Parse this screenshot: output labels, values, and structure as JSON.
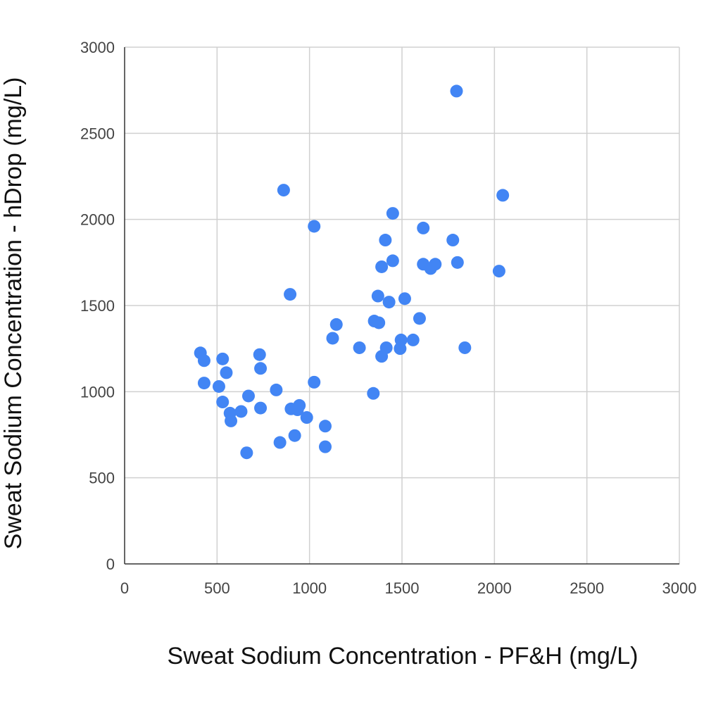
{
  "chart_data": {
    "type": "scatter",
    "title": "",
    "xlabel": "Sweat Sodium Concentration - PF&H (mg/L)",
    "ylabel": "Sweat Sodium Concentration - hDrop (mg/L)",
    "xlim": [
      0,
      3000
    ],
    "ylim": [
      0,
      3000
    ],
    "xticks": [
      "0",
      "500",
      "1000",
      "1500",
      "2000",
      "2500",
      "3000"
    ],
    "yticks": [
      "0",
      "500",
      "1000",
      "1500",
      "2000",
      "2500",
      "3000"
    ],
    "grid": true,
    "point_color": "#4285f4",
    "series": [
      {
        "name": "Sweat Sodium",
        "points": [
          [
            410,
            1225
          ],
          [
            430,
            1180
          ],
          [
            430,
            1050
          ],
          [
            510,
            1030
          ],
          [
            530,
            1190
          ],
          [
            550,
            1110
          ],
          [
            530,
            940
          ],
          [
            570,
            875
          ],
          [
            575,
            830
          ],
          [
            630,
            885
          ],
          [
            660,
            645
          ],
          [
            670,
            975
          ],
          [
            730,
            1215
          ],
          [
            735,
            1135
          ],
          [
            735,
            905
          ],
          [
            820,
            1010
          ],
          [
            840,
            705
          ],
          [
            860,
            2170
          ],
          [
            895,
            1565
          ],
          [
            900,
            900
          ],
          [
            920,
            745
          ],
          [
            935,
            895
          ],
          [
            945,
            920
          ],
          [
            985,
            850
          ],
          [
            1025,
            1055
          ],
          [
            1025,
            1960
          ],
          [
            1085,
            800
          ],
          [
            1085,
            680
          ],
          [
            1125,
            1310
          ],
          [
            1145,
            1390
          ],
          [
            1270,
            1255
          ],
          [
            1345,
            990
          ],
          [
            1350,
            1410
          ],
          [
            1375,
            1400
          ],
          [
            1370,
            1555
          ],
          [
            1390,
            1725
          ],
          [
            1390,
            1205
          ],
          [
            1410,
            1880
          ],
          [
            1415,
            1255
          ],
          [
            1430,
            1520
          ],
          [
            1450,
            2035
          ],
          [
            1450,
            1760
          ],
          [
            1490,
            1250
          ],
          [
            1495,
            1300
          ],
          [
            1515,
            1540
          ],
          [
            1560,
            1300
          ],
          [
            1595,
            1425
          ],
          [
            1615,
            1740
          ],
          [
            1615,
            1950
          ],
          [
            1655,
            1715
          ],
          [
            1680,
            1740
          ],
          [
            1775,
            1880
          ],
          [
            1795,
            2745
          ],
          [
            1800,
            1750
          ],
          [
            1840,
            1255
          ],
          [
            2025,
            1700
          ],
          [
            2045,
            2140
          ]
        ]
      }
    ]
  }
}
